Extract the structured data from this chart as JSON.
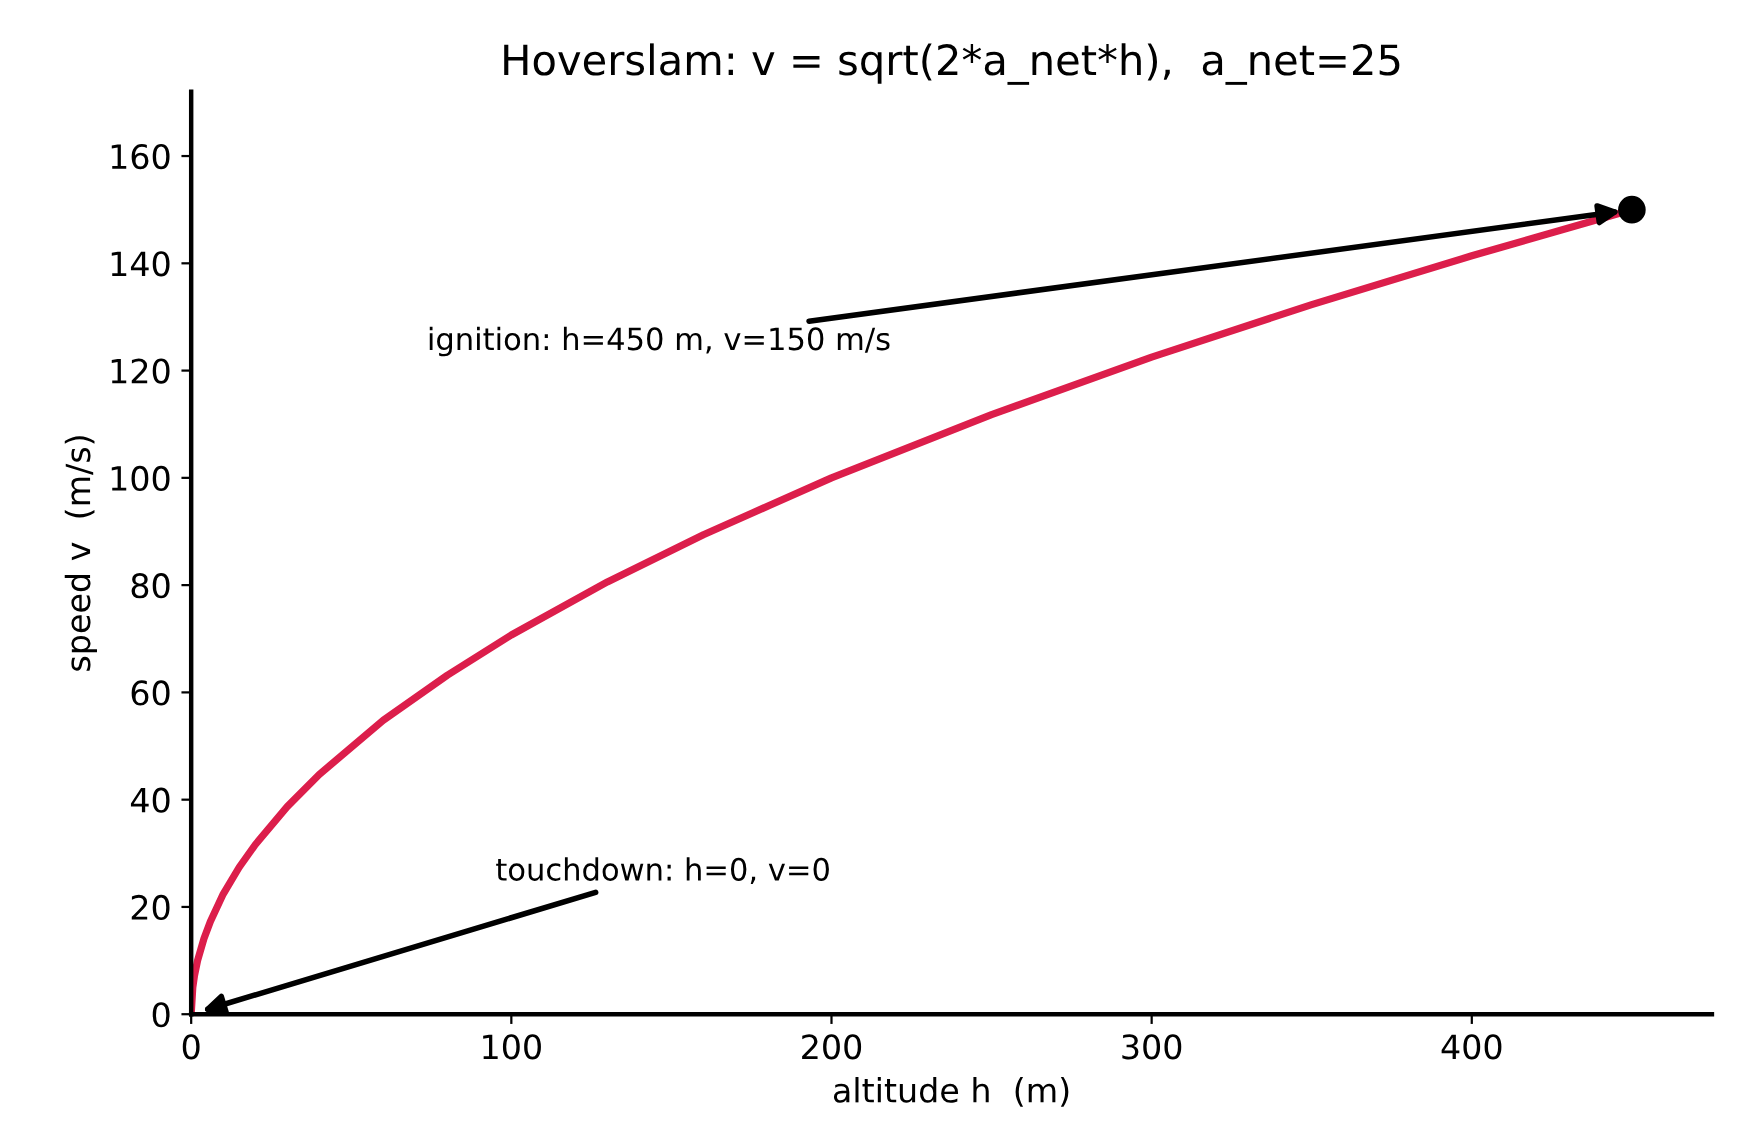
{
  "chart_data": {
    "type": "line",
    "title": "Hoverslam: v = sqrt(2*a_net*h),  a_net=25",
    "xlabel": "altitude h  (m)",
    "ylabel": "speed v  (m/s)",
    "series": [
      {
        "color": "#dc1e4b",
        "marker": "none",
        "x": [
          0,
          0.5,
          1,
          2,
          4,
          6,
          10,
          15,
          20,
          30,
          40,
          60,
          80,
          100,
          130,
          160,
          200,
          250,
          300,
          350,
          400,
          450
        ],
        "values": [
          0,
          5,
          7.1,
          10,
          14.1,
          17.3,
          22.4,
          27.4,
          31.6,
          38.7,
          44.7,
          54.8,
          63.2,
          70.7,
          80.6,
          89.4,
          100,
          111.8,
          122.5,
          132.3,
          141.4,
          150
        ]
      },
      {
        "type": "scatter",
        "color": "#000000",
        "marker": "circle",
        "x": [
          450
        ],
        "values": [
          150
        ]
      }
    ],
    "annotations": [
      {
        "text": "ignition: h=450 m, v=150 m/s",
        "x": 450,
        "y": 150
      },
      {
        "text": "touchdown: h=0, v=0",
        "x": 0,
        "y": 0
      }
    ],
    "xlim": [
      0,
      475
    ],
    "ylim": [
      0,
      172
    ],
    "xticks": [
      0,
      100,
      200,
      300,
      400
    ],
    "yticks": [
      0,
      20,
      40,
      60,
      80,
      100,
      120,
      140,
      160
    ]
  }
}
